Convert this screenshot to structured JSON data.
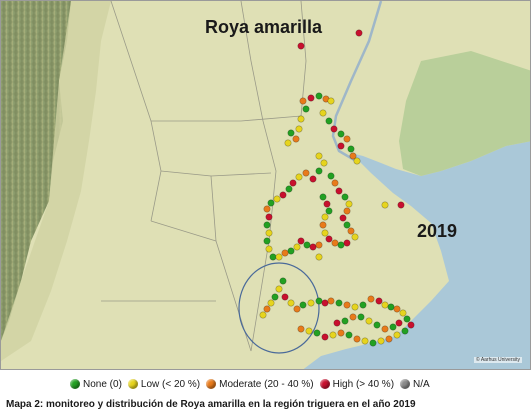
{
  "map": {
    "title": "Roya amarilla",
    "year": "2019",
    "attribution": "© Aarhus University"
  },
  "legend": {
    "items": [
      {
        "label": "None (0)",
        "color": "#22a022"
      },
      {
        "label": "Low (< 20 %)",
        "color": "#e6d41e"
      },
      {
        "label": "Moderate (20 - 40 %)",
        "color": "#e87a1a"
      },
      {
        "label": "High (> 40 %)",
        "color": "#c8102e"
      },
      {
        "label": "N/A",
        "color": "#8a8a8a"
      }
    ]
  },
  "caption": "Mapa 2: monitoreo y distribución de Roya amarilla en la región triguera en el año 2019"
}
